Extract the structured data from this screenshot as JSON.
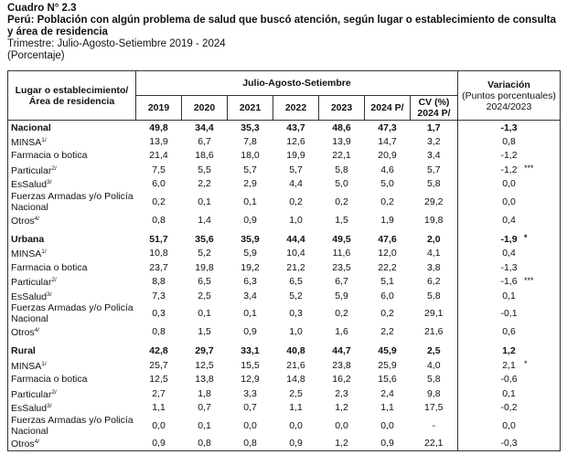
{
  "header": {
    "title": "Cuadro N° 2.3",
    "subtitle": "Perú: Población con algún problema de salud que buscó atención, según lugar o establecimiento de consulta y área de residencia",
    "period": "Trimestre: Julio-Agosto-Setiembre 2019 - 2024",
    "unit": "(Porcentaje)"
  },
  "table": {
    "label_header": [
      "Lugar o establecimiento/",
      "Área de residencia"
    ],
    "group_header": "Julio-Agosto-Setiembre",
    "columns": [
      "2019",
      "2020",
      "2021",
      "2022",
      "2023",
      "2024 P/"
    ],
    "cv_header": [
      "CV (%)",
      "2024 P/"
    ],
    "variation_header": [
      "Variación",
      "(Puntos porcentuales)",
      "2024/2023"
    ],
    "groups": [
      {
        "rows": [
          {
            "label": "Nacional",
            "values": [
              "49,8",
              "34,4",
              "35,3",
              "43,7",
              "48,6",
              "47,3",
              "1,7",
              "-1,3"
            ]
          },
          {
            "label": "MINSA",
            "sup": "1/",
            "values": [
              "13,9",
              "6,7",
              "7,8",
              "12,6",
              "13,9",
              "14,7",
              "3,2",
              "0,8"
            ]
          },
          {
            "label": "Farmacia o botica",
            "values": [
              "21,4",
              "18,6",
              "18,0",
              "19,9",
              "22,1",
              "20,9",
              "3,4",
              "-1,2"
            ]
          },
          {
            "label": "Particular",
            "sup": "2/",
            "values": [
              "7,5",
              "5,5",
              "5,7",
              "5,7",
              "5,8",
              "4,6",
              "5,7",
              "-1,2"
            ],
            "flag": "***"
          },
          {
            "label": "EsSalud",
            "sup": "3/",
            "values": [
              "6,0",
              "2,2",
              "2,9",
              "4,4",
              "5,0",
              "5,0",
              "5,8",
              "0,0"
            ]
          },
          {
            "label": "Fuerzas Armadas y/o Policía Nacional",
            "values": [
              "0,2",
              "0,1",
              "0,1",
              "0,2",
              "0,2",
              "0,2",
              "29,2",
              "0,0"
            ]
          },
          {
            "label": "Otros",
            "sup": "4/",
            "values": [
              "0,8",
              "1,4",
              "0,9",
              "1,0",
              "1,5",
              "1,9",
              "19,8",
              "0,4"
            ]
          }
        ]
      },
      {
        "rows": [
          {
            "label": "Urbana",
            "values": [
              "51,7",
              "35,6",
              "35,9",
              "44,4",
              "49,5",
              "47,6",
              "2,0",
              "-1,9"
            ],
            "flag": "*"
          },
          {
            "label": "MINSA",
            "sup": "1/",
            "values": [
              "10,8",
              "5,2",
              "5,9",
              "10,4",
              "11,6",
              "12,0",
              "4,1",
              "0,4"
            ]
          },
          {
            "label": "Farmacia o botica",
            "values": [
              "23,7",
              "19,8",
              "19,2",
              "21,2",
              "23,5",
              "22,2",
              "3,8",
              "-1,3"
            ]
          },
          {
            "label": "Particular",
            "sup": "2/",
            "values": [
              "8,8",
              "6,5",
              "6,3",
              "6,5",
              "6,7",
              "5,1",
              "6,2",
              "-1,6"
            ],
            "flag": "***"
          },
          {
            "label": "EsSalud",
            "sup": "3/",
            "values": [
              "7,3",
              "2,5",
              "3,4",
              "5,2",
              "5,9",
              "6,0",
              "5,8",
              "0,1"
            ]
          },
          {
            "label": "Fuerzas Armadas y/o Policía Nacional",
            "values": [
              "0,3",
              "0,1",
              "0,1",
              "0,3",
              "0,2",
              "0,2",
              "29,1",
              "-0,1"
            ]
          },
          {
            "label": "Otros",
            "sup": "4/",
            "values": [
              "0,8",
              "1,5",
              "0,9",
              "1,0",
              "1,6",
              "2,2",
              "21,6",
              "0,6"
            ]
          }
        ]
      },
      {
        "rows": [
          {
            "label": "Rural",
            "values": [
              "42,8",
              "29,7",
              "33,1",
              "40,8",
              "44,7",
              "45,9",
              "2,5",
              "1,2"
            ]
          },
          {
            "label": "MINSA",
            "sup": "1/",
            "values": [
              "25,7",
              "12,5",
              "15,5",
              "21,6",
              "23,8",
              "25,9",
              "4,0",
              "2,1"
            ],
            "flag": "*"
          },
          {
            "label": "Farmacia o botica",
            "values": [
              "12,5",
              "13,8",
              "12,9",
              "14,8",
              "16,2",
              "15,6",
              "5,8",
              "-0,6"
            ]
          },
          {
            "label": "Particular",
            "sup": "2/",
            "values": [
              "2,7",
              "1,8",
              "3,3",
              "2,5",
              "2,3",
              "2,4",
              "9,8",
              "0,1"
            ]
          },
          {
            "label": "EsSalud",
            "sup": "3/",
            "values": [
              "1,1",
              "0,7",
              "0,7",
              "1,1",
              "1,2",
              "1,1",
              "17,5",
              "-0,2"
            ]
          },
          {
            "label": "Fuerzas Armadas y/o Policía Nacional",
            "values": [
              "0,0",
              "0,1",
              "0,0",
              "0,0",
              "0,0",
              "0,0",
              "-",
              "0,0"
            ]
          },
          {
            "label": "Otros",
            "sup": "4/",
            "values": [
              "0,9",
              "0,8",
              "0,8",
              "0,9",
              "1,2",
              "0,9",
              "22,1",
              "-0,3"
            ]
          }
        ]
      }
    ]
  }
}
